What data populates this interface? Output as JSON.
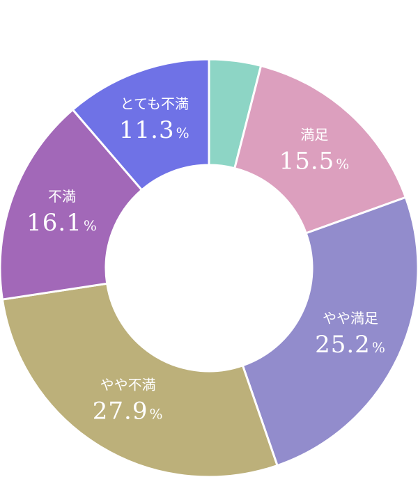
{
  "chart_data": {
    "type": "pie",
    "donut": true,
    "unit": "%",
    "categories": [
      "",
      "満足",
      "やや満足",
      "やや不満",
      "不満",
      "とても不満"
    ],
    "values": [
      4.0,
      15.5,
      25.2,
      27.9,
      16.1,
      11.3
    ],
    "value_labels": [
      "",
      "15.5",
      "25.2",
      "27.9",
      "16.1",
      "11.3"
    ],
    "colors": [
      "#8dd5c5",
      "#dc9fbe",
      "#928ccc",
      "#bcb07a",
      "#a268b8",
      "#6f72e6"
    ],
    "label_color": "#ffffff",
    "start": "top",
    "direction": "clockwise",
    "legend": "none"
  }
}
